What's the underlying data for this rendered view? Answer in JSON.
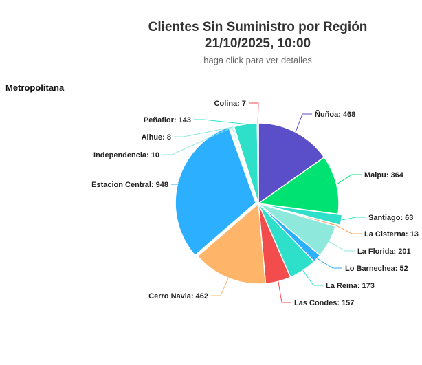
{
  "header": {
    "title_line1": "Clientes Sin Suministro por Región",
    "title_line2": "21/10/2025, 10:00",
    "subtitle": "haga click para ver detalles"
  },
  "region": {
    "label": "Metropolitana"
  },
  "chart_data": {
    "type": "pie",
    "title": "Clientes Sin Suministro por Región",
    "subtitle": "haga click para ver detalles",
    "slices": [
      {
        "label": "Ñuñoa",
        "value": 468,
        "color": "#5a4fc8"
      },
      {
        "label": "Maipu",
        "value": 364,
        "color": "#00e272"
      },
      {
        "label": "Santiago",
        "value": 63,
        "color": "#2ee0ca"
      },
      {
        "label": "La Cisterna",
        "value": 13,
        "color": "#f7a35c"
      },
      {
        "label": "La Florida",
        "value": 201,
        "color": "#8fe8dc"
      },
      {
        "label": "Lo Barnechea",
        "value": 52,
        "color": "#2caffe"
      },
      {
        "label": "La Reina",
        "value": 173,
        "color": "#2ee0ca"
      },
      {
        "label": "Las Condes",
        "value": 157,
        "color": "#f24c4c"
      },
      {
        "label": "Cerro Navia",
        "value": 462,
        "color": "#feb56a"
      },
      {
        "label": "Estacion Central",
        "value": 948,
        "color": "#2caffe"
      },
      {
        "label": "Independencia",
        "value": 10,
        "color": "#8fe8dc"
      },
      {
        "label": "Alhue",
        "value": 8,
        "color": "#8fe8dc"
      },
      {
        "label": "Peñaflor",
        "value": 143,
        "color": "#2ee0ca"
      },
      {
        "label": "Colina",
        "value": 7,
        "color": "#f24c4c"
      }
    ]
  }
}
